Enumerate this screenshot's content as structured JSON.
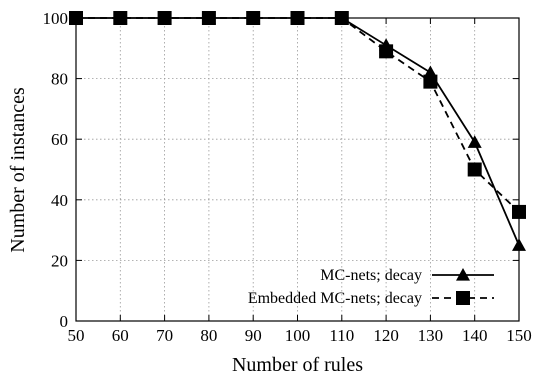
{
  "chart_data": {
    "type": "line",
    "title": "",
    "xlabel": "Number of rules",
    "ylabel": "Number of instances",
    "xlim": [
      50,
      150
    ],
    "ylim": [
      0,
      100
    ],
    "x": [
      50,
      60,
      70,
      80,
      90,
      100,
      110,
      120,
      130,
      140,
      150
    ],
    "xticks": [
      "50",
      "60",
      "70",
      "80",
      "90",
      "100",
      "110",
      "120",
      "130",
      "140",
      "150"
    ],
    "yticks": [
      "0",
      "20",
      "40",
      "60",
      "80",
      "100"
    ],
    "grid": true,
    "legend_position": "bottom-right",
    "series": [
      {
        "name": "MC-nets; decay",
        "marker": "triangle",
        "line_style": "solid",
        "color": "#000000",
        "values": [
          100,
          100,
          100,
          100,
          100,
          100,
          100,
          91,
          82,
          59,
          25
        ]
      },
      {
        "name": "Embedded MC-nets; decay",
        "marker": "square",
        "line_style": "dashed",
        "color": "#000000",
        "values": [
          100,
          100,
          100,
          100,
          100,
          100,
          100,
          89,
          79,
          50,
          36
        ]
      }
    ]
  }
}
